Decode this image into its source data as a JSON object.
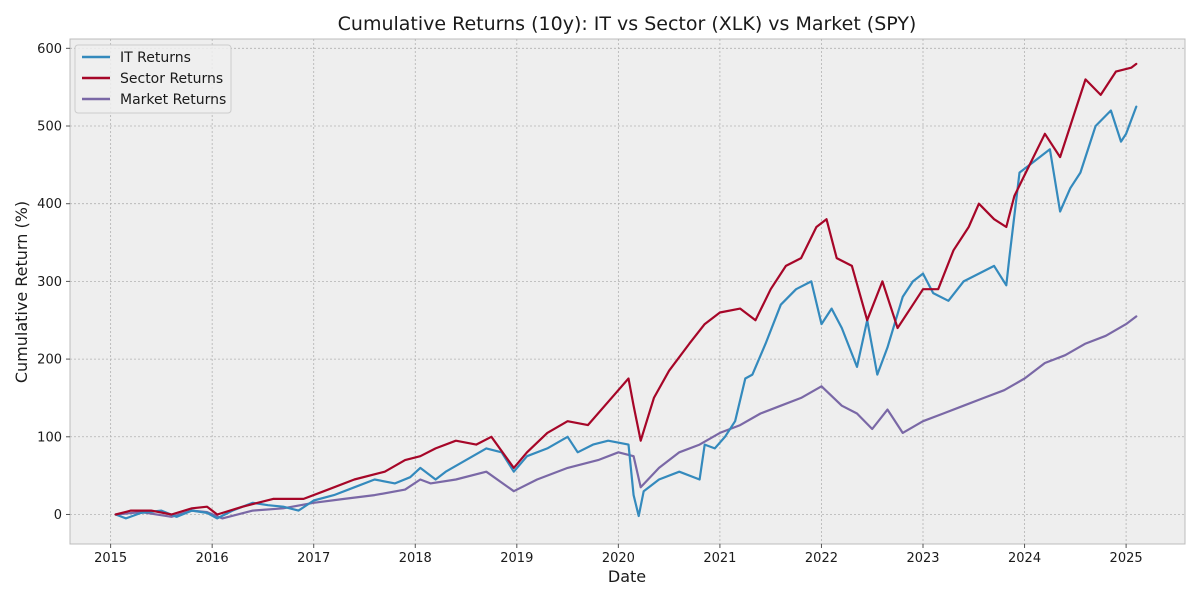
{
  "chart_data": {
    "type": "line",
    "title": "Cumulative Returns (10y): IT vs Sector (XLK) vs Market (SPY)",
    "xlabel": "Date",
    "ylabel": "Cumulative Return (%)",
    "xlim": [
      2014.6,
      2025.58
    ],
    "ylim": [
      -38,
      612
    ],
    "x_ticks": [
      2015,
      2016,
      2017,
      2018,
      2019,
      2020,
      2021,
      2022,
      2023,
      2024,
      2025
    ],
    "x_tick_labels": [
      "2015",
      "2016",
      "2017",
      "2018",
      "2019",
      "2020",
      "2021",
      "2022",
      "2023",
      "2024",
      "2025"
    ],
    "y_ticks": [
      0,
      100,
      200,
      300,
      400,
      500,
      600
    ],
    "y_tick_labels": [
      "0",
      "100",
      "200",
      "300",
      "400",
      "500",
      "600"
    ],
    "grid": true,
    "legend_position": "top-left",
    "series": [
      {
        "name": "IT Returns",
        "color": "#348ABD",
        "x": [
          2015.05,
          2015.15,
          2015.3,
          2015.5,
          2015.65,
          2015.8,
          2015.95,
          2016.05,
          2016.2,
          2016.4,
          2016.55,
          2016.7,
          2016.85,
          2017.0,
          2017.2,
          2017.4,
          2017.6,
          2017.8,
          2017.95,
          2018.05,
          2018.2,
          2018.3,
          2018.5,
          2018.7,
          2018.85,
          2018.97,
          2019.1,
          2019.3,
          2019.5,
          2019.6,
          2019.75,
          2019.9,
          2020.1,
          2020.15,
          2020.2,
          2020.25,
          2020.4,
          2020.6,
          2020.8,
          2020.85,
          2020.95,
          2021.05,
          2021.15,
          2021.25,
          2021.32,
          2021.45,
          2021.6,
          2021.75,
          2021.9,
          2022.0,
          2022.1,
          2022.2,
          2022.35,
          2022.45,
          2022.55,
          2022.65,
          2022.8,
          2022.9,
          2023.0,
          2023.1,
          2023.25,
          2023.4,
          2023.55,
          2023.7,
          2023.82,
          2023.85,
          2023.95,
          2024.1,
          2024.25,
          2024.35,
          2024.45,
          2024.55,
          2024.7,
          2024.85,
          2024.95,
          2025.0,
          2025.1
        ],
        "y": [
          0,
          -5,
          2,
          5,
          -3,
          5,
          2,
          -5,
          5,
          15,
          12,
          10,
          5,
          18,
          25,
          35,
          45,
          40,
          48,
          60,
          45,
          55,
          70,
          85,
          80,
          55,
          75,
          85,
          100,
          80,
          90,
          95,
          90,
          25,
          -2,
          30,
          45,
          55,
          45,
          90,
          85,
          100,
          120,
          175,
          180,
          220,
          270,
          290,
          300,
          245,
          265,
          240,
          190,
          250,
          180,
          215,
          280,
          300,
          310,
          285,
          275,
          300,
          310,
          320,
          295,
          330,
          440,
          455,
          470,
          390,
          420,
          440,
          500,
          520,
          480,
          490,
          525
        ]
      },
      {
        "name": "Sector Returns",
        "color": "#A60628",
        "x": [
          2015.05,
          2015.2,
          2015.4,
          2015.6,
          2015.8,
          2015.95,
          2016.05,
          2016.3,
          2016.6,
          2016.9,
          2017.1,
          2017.4,
          2017.7,
          2017.9,
          2018.05,
          2018.2,
          2018.4,
          2018.6,
          2018.75,
          2018.97,
          2019.1,
          2019.3,
          2019.5,
          2019.7,
          2019.9,
          2020.1,
          2020.15,
          2020.22,
          2020.35,
          2020.5,
          2020.7,
          2020.85,
          2021.0,
          2021.2,
          2021.35,
          2021.5,
          2021.65,
          2021.8,
          2021.95,
          2022.05,
          2022.15,
          2022.3,
          2022.45,
          2022.6,
          2022.75,
          2022.9,
          2023.0,
          2023.15,
          2023.3,
          2023.45,
          2023.55,
          2023.7,
          2023.82,
          2023.9,
          2024.05,
          2024.2,
          2024.35,
          2024.5,
          2024.6,
          2024.75,
          2024.9,
          2025.05,
          2025.1
        ],
        "y": [
          0,
          5,
          5,
          0,
          8,
          10,
          0,
          10,
          20,
          20,
          30,
          45,
          55,
          70,
          75,
          85,
          95,
          90,
          100,
          60,
          80,
          105,
          120,
          115,
          145,
          175,
          140,
          95,
          150,
          185,
          220,
          245,
          260,
          265,
          250,
          290,
          320,
          330,
          370,
          380,
          330,
          320,
          250,
          300,
          240,
          270,
          290,
          290,
          340,
          370,
          400,
          380,
          370,
          410,
          450,
          490,
          460,
          520,
          560,
          540,
          570,
          575,
          580
        ]
      },
      {
        "name": "Market Returns",
        "color": "#7A68A6",
        "x": [
          2015.05,
          2015.3,
          2015.6,
          2015.8,
          2015.95,
          2016.1,
          2016.4,
          2016.7,
          2017.0,
          2017.3,
          2017.6,
          2017.9,
          2018.05,
          2018.15,
          2018.4,
          2018.7,
          2018.97,
          2019.2,
          2019.5,
          2019.8,
          2020.0,
          2020.15,
          2020.22,
          2020.4,
          2020.6,
          2020.8,
          2021.0,
          2021.2,
          2021.4,
          2021.6,
          2021.8,
          2022.0,
          2022.2,
          2022.35,
          2022.5,
          2022.65,
          2022.8,
          2023.0,
          2023.2,
          2023.4,
          2023.6,
          2023.8,
          2024.0,
          2024.2,
          2024.4,
          2024.6,
          2024.8,
          2025.0,
          2025.1
        ],
        "y": [
          0,
          3,
          -3,
          5,
          3,
          -5,
          5,
          8,
          15,
          20,
          25,
          32,
          45,
          40,
          45,
          55,
          30,
          45,
          60,
          70,
          80,
          75,
          35,
          60,
          80,
          90,
          105,
          115,
          130,
          140,
          150,
          165,
          140,
          130,
          110,
          135,
          105,
          120,
          130,
          140,
          150,
          160,
          175,
          195,
          205,
          220,
          230,
          245,
          255
        ]
      }
    ]
  }
}
